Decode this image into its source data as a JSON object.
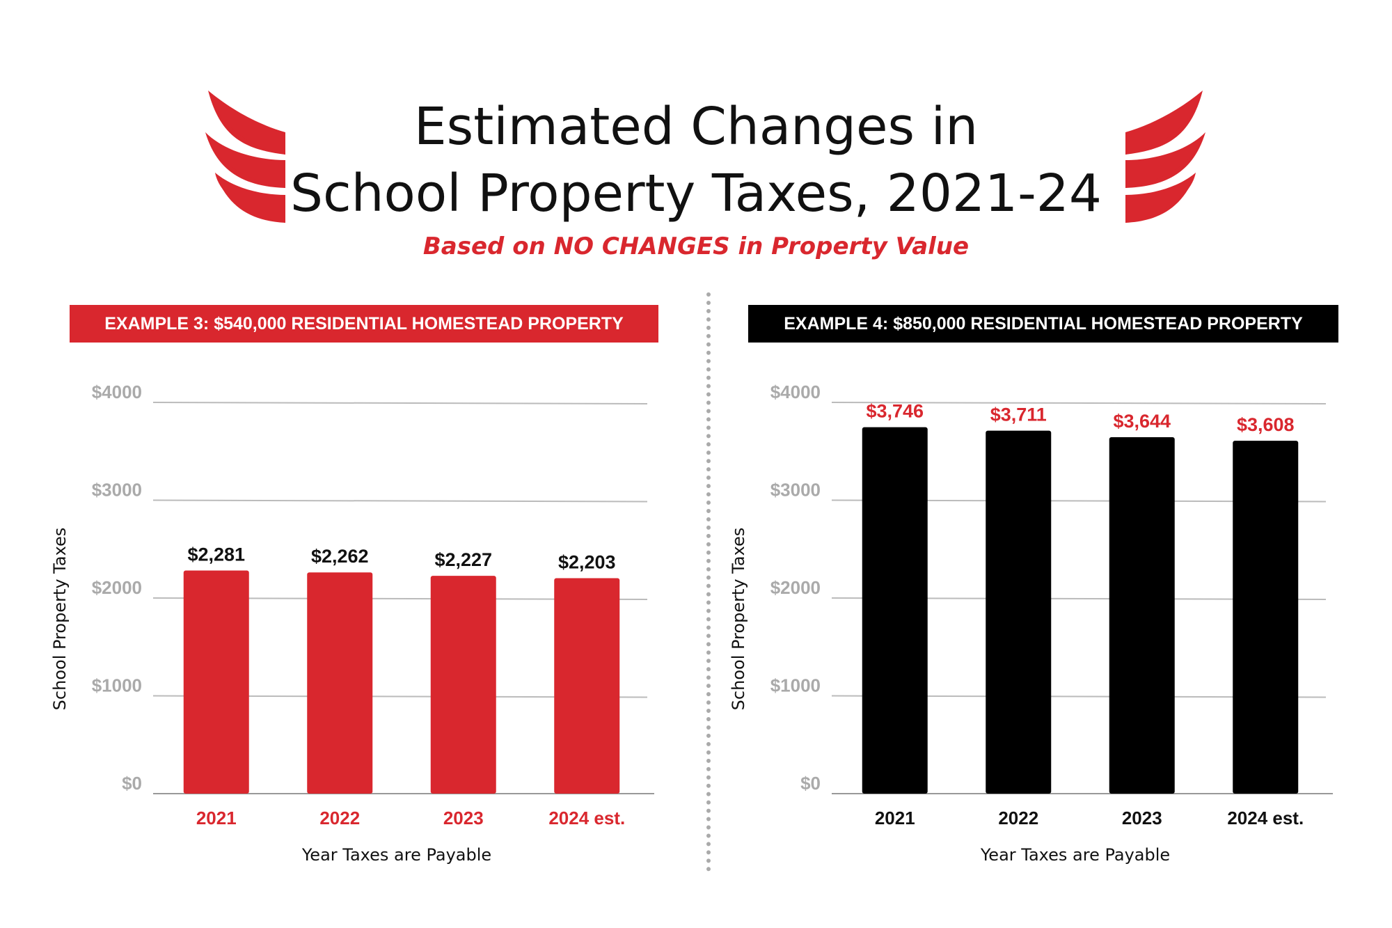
{
  "header": {
    "title_line1": "Estimated Changes in",
    "title_line2": "School Property Taxes, 2021-24",
    "subtitle": "Based on NO CHANGES in Property Value"
  },
  "colors": {
    "accent_red": "#d9272e",
    "black": "#000000",
    "grid": "#bbbbbb",
    "tick": "#aaaaaa"
  },
  "chart_data": [
    {
      "type": "bar",
      "title": "EXAMPLE 3: $540,000 RESIDENTIAL HOMESTEAD PROPERTY",
      "categories": [
        "2021",
        "2022",
        "2023",
        "2024 est."
      ],
      "values": [
        2281,
        2262,
        2227,
        2203
      ],
      "value_labels": [
        "$2,281",
        "$2,262",
        "$2,227",
        "$2,203"
      ],
      "yticks": [
        "$0",
        "$1000",
        "$2000",
        "$3000",
        "$4000"
      ],
      "xlabel": "Year Taxes are Payable",
      "ylabel": "School Property Taxes",
      "ylim": [
        0,
        4000
      ],
      "bar_color": "#d9272e",
      "category_label_color": "#d9272e",
      "value_label_color": "#111111",
      "grid": true
    },
    {
      "type": "bar",
      "title": "EXAMPLE 4: $850,000 RESIDENTIAL HOMESTEAD PROPERTY",
      "categories": [
        "2021",
        "2022",
        "2023",
        "2024 est."
      ],
      "values": [
        3746,
        3711,
        3644,
        3608
      ],
      "value_labels": [
        "$3,746",
        "$3,711",
        "$3,644",
        "$3,608"
      ],
      "yticks": [
        "$0",
        "$1000",
        "$2000",
        "$3000",
        "$4000"
      ],
      "xlabel": "Year Taxes are Payable",
      "ylabel": "School Property Taxes",
      "ylim": [
        0,
        4000
      ],
      "bar_color": "#000000",
      "category_label_color": "#111111",
      "value_label_color": "#d9272e",
      "grid": true
    }
  ]
}
